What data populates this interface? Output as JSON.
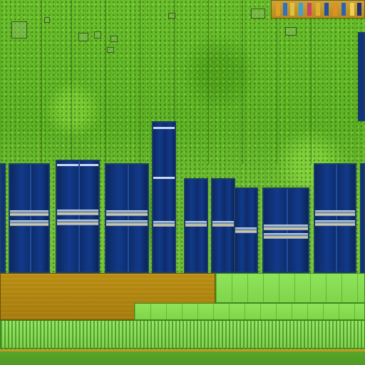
{
  "image": {
    "subject": "die-photo",
    "colors": {
      "foliage_light": "#7bd13a",
      "foliage_dark": "#3e7a14",
      "capacitor_blue": "#0e2c6c",
      "gold_bus": "#b08510",
      "green_bus": "#86dd52"
    }
  }
}
